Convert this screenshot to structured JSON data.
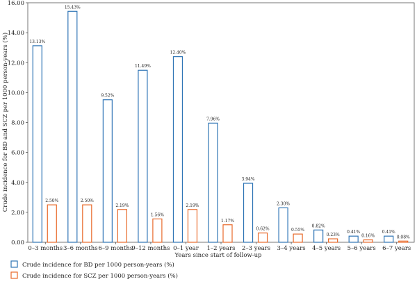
{
  "chart_data": {
    "type": "bar",
    "xlabel": "Years since start of follow-up",
    "ylabel": "Crude incidence for BD and SCZ per 1000 person-years (%)",
    "ylim": [
      0,
      16
    ],
    "yticks": [
      "0.00",
      "2.00",
      "4.00",
      "6.00",
      "8.00",
      "10.00",
      "12.00",
      "14.00",
      "16.00"
    ],
    "categories": [
      "0–3 months",
      "3–6 months",
      "6–9 months",
      "9–12 months",
      "0–1 year",
      "1–2 years",
      "2–3 years",
      "3–4 years",
      "4–5 years",
      "5–6 years",
      "6–7 years"
    ],
    "series": [
      {
        "name": "Crude incidence for BD per 1000 person-years (%)",
        "color": "#2e74b5",
        "values": [
          13.13,
          15.43,
          9.52,
          11.49,
          12.4,
          7.96,
          3.94,
          2.3,
          0.82,
          0.41,
          0.41
        ],
        "labels": [
          "13.13%",
          "15.43%",
          "9.52%",
          "11.49%",
          "12.40%",
          "7.96%",
          "3.94%",
          "2.30%",
          "0.82%",
          "0.41%",
          "0.41%"
        ]
      },
      {
        "name": "Crude incidence for SCZ per 1000 person-years (%)",
        "color": "#e8692a",
        "values": [
          2.5,
          2.5,
          2.19,
          1.56,
          2.19,
          1.17,
          0.62,
          0.55,
          0.23,
          0.16,
          0.08
        ],
        "labels": [
          "2.50%",
          "2.50%",
          "2.19%",
          "1.56%",
          "2.19%",
          "1.17%",
          "0.62%",
          "0.55%",
          "0.23%",
          "0.16%",
          "0.08%"
        ]
      }
    ],
    "grid": false,
    "legend_position": "bottom-left"
  }
}
